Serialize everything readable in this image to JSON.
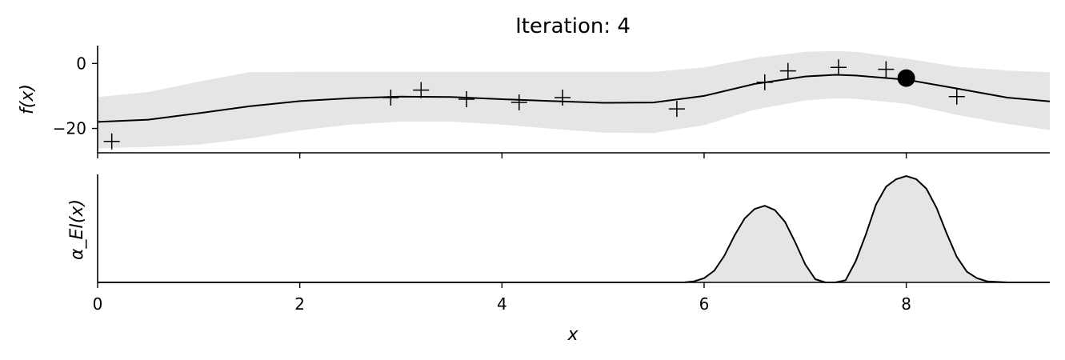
{
  "title": "Iteration: 4",
  "colors": {
    "line": "#000000",
    "band": "#e5e5e5",
    "fill": "#e5e5e5"
  },
  "chart_data": [
    {
      "type": "line",
      "panel": "surrogate",
      "title": "Iteration: 4",
      "ylabel": "f(x)",
      "xlim": [
        0,
        9.42
      ],
      "ylim": [
        -27.5,
        5.5
      ],
      "yticks": [
        0,
        -20
      ],
      "grid": false,
      "mean": {
        "x": [
          0,
          0.5,
          1,
          1.5,
          2,
          2.5,
          3,
          3.5,
          4,
          4.5,
          5,
          5.5,
          6,
          6.5,
          7,
          7.3,
          7.5,
          8,
          8.5,
          9,
          9.42
        ],
        "y": [
          -18,
          -17.3,
          -15.3,
          -13.2,
          -11.6,
          -10.7,
          -10.2,
          -10.3,
          -11,
          -11.6,
          -12.1,
          -12,
          -10,
          -6.3,
          -4,
          -3.5,
          -3.7,
          -5,
          -7.7,
          -10.5,
          -11.7
        ]
      },
      "band": {
        "x": [
          0,
          0.5,
          1,
          1.5,
          2,
          2.5,
          3,
          3.5,
          4,
          4.5,
          5,
          5.5,
          6,
          6.5,
          7,
          7.3,
          7.5,
          8,
          8.5,
          9,
          9.42
        ],
        "upper": [
          -10.3,
          -8.8,
          -5.6,
          -2.7,
          -2.6,
          -2.6,
          -2.6,
          -2.6,
          -2.6,
          -2.6,
          -2.6,
          -2.6,
          -1.2,
          1.7,
          3.6,
          3.8,
          3.6,
          1.5,
          -1,
          -2.2,
          -2.7
        ],
        "lower": [
          -26.1,
          -25.7,
          -25,
          -23.1,
          -20.6,
          -18.8,
          -17.9,
          -17.9,
          -18.8,
          -20.1,
          -21.3,
          -21.4,
          -19,
          -14.2,
          -11.4,
          -10.7,
          -10.9,
          -12.4,
          -15.8,
          -18.6,
          -20.5
        ]
      },
      "observations": {
        "x": [
          0.14,
          2.9,
          3.2,
          3.65,
          4.17,
          4.6,
          5.73,
          6.6,
          6.83,
          7.33,
          7.8,
          8.5
        ],
        "y": [
          -24,
          -10.5,
          -8.2,
          -11,
          -12,
          -10.5,
          -14,
          -5.8,
          -2.3,
          -1.2,
          -1.8,
          -10.2
        ]
      },
      "next_point": {
        "x": 8.0,
        "y": -4.5
      }
    },
    {
      "type": "area",
      "panel": "acquisition",
      "ylabel": "α_EI(x)",
      "xlabel": "x",
      "xlim": [
        0,
        9.42
      ],
      "ylim": [
        0,
        1
      ],
      "xticks": [
        0,
        2,
        4,
        6,
        8
      ],
      "grid": false,
      "curve": {
        "x": [
          0,
          5.5,
          5.8,
          5.9,
          6.0,
          6.1,
          6.2,
          6.3,
          6.4,
          6.5,
          6.6,
          6.7,
          6.8,
          6.9,
          7.0,
          7.1,
          7.2,
          7.3,
          7.4,
          7.5,
          7.6,
          7.7,
          7.8,
          7.9,
          8.0,
          8.1,
          8.2,
          8.3,
          8.4,
          8.5,
          8.6,
          8.7,
          8.8,
          9.0,
          9.42
        ],
        "y": [
          0,
          0,
          0,
          0.01,
          0.04,
          0.11,
          0.25,
          0.44,
          0.6,
          0.69,
          0.72,
          0.68,
          0.57,
          0.38,
          0.17,
          0.03,
          0,
          0,
          0.02,
          0.2,
          0.45,
          0.73,
          0.9,
          0.97,
          1.0,
          0.97,
          0.88,
          0.7,
          0.46,
          0.24,
          0.1,
          0.04,
          0.01,
          0,
          0
        ]
      }
    }
  ]
}
